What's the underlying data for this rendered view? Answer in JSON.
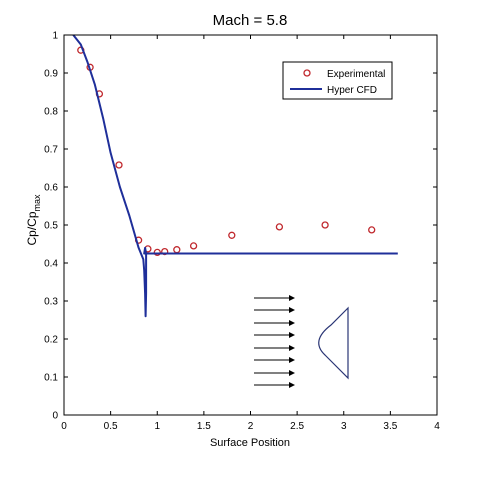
{
  "colors": {
    "background": "#ffffff",
    "axes": "#000000",
    "cfd_line": "#1f2f9a",
    "experimental_marker": "#c0282d",
    "text": "#000000",
    "diagram": "#000000",
    "diagram_body": "#2a3575"
  },
  "chart_data": {
    "type": "line",
    "title": "Mach = 5.8",
    "xlabel": "Surface Position",
    "ylabel": {
      "base": "Cp/Cp",
      "subscript": "max"
    },
    "xlim": [
      0,
      4
    ],
    "ylim": [
      0,
      1
    ],
    "xticks": [
      0,
      0.5,
      1,
      1.5,
      2,
      2.5,
      3,
      3.5,
      4
    ],
    "xtick_labels": [
      "0",
      "0.5",
      "1",
      "1.5",
      "2",
      "2.5",
      "3",
      "3.5",
      "4"
    ],
    "yticks": [
      0,
      0.1,
      0.2,
      0.3,
      0.4,
      0.5,
      0.6,
      0.7,
      0.8,
      0.9,
      1
    ],
    "ytick_labels": [
      "0",
      "0.1",
      "0.2",
      "0.3",
      "0.4",
      "0.5",
      "0.6",
      "0.7",
      "0.8",
      "0.9",
      "1"
    ],
    "grid": false,
    "legend": {
      "position": "top-right",
      "entries": [
        "Experimental",
        "Hyper CFD"
      ]
    },
    "series": [
      {
        "name": "Experimental",
        "style": "marker-circle",
        "x": [
          0.18,
          0.28,
          0.38,
          0.59,
          0.8,
          0.9,
          1.0,
          1.08,
          1.21,
          1.39,
          1.8,
          2.31,
          2.8,
          3.3
        ],
        "y": [
          0.96,
          0.915,
          0.845,
          0.658,
          0.46,
          0.437,
          0.428,
          0.43,
          0.435,
          0.445,
          0.473,
          0.495,
          0.5,
          0.487
        ]
      },
      {
        "name": "Hyper CFD",
        "style": "line",
        "x": [
          0.1,
          0.18,
          0.25,
          0.33,
          0.42,
          0.5,
          0.6,
          0.7,
          0.8,
          0.85,
          0.86,
          0.87,
          0.875,
          0.88,
          0.88,
          0.87,
          0.86,
          0.88,
          0.9,
          1.0,
          2.0,
          3.0,
          3.58
        ],
        "y": [
          1.0,
          0.975,
          0.93,
          0.87,
          0.78,
          0.69,
          0.6,
          0.525,
          0.44,
          0.41,
          0.38,
          0.32,
          0.26,
          0.32,
          0.425,
          0.44,
          0.425,
          0.425,
          0.425,
          0.425,
          0.425,
          0.425,
          0.425
        ]
      }
    ]
  }
}
